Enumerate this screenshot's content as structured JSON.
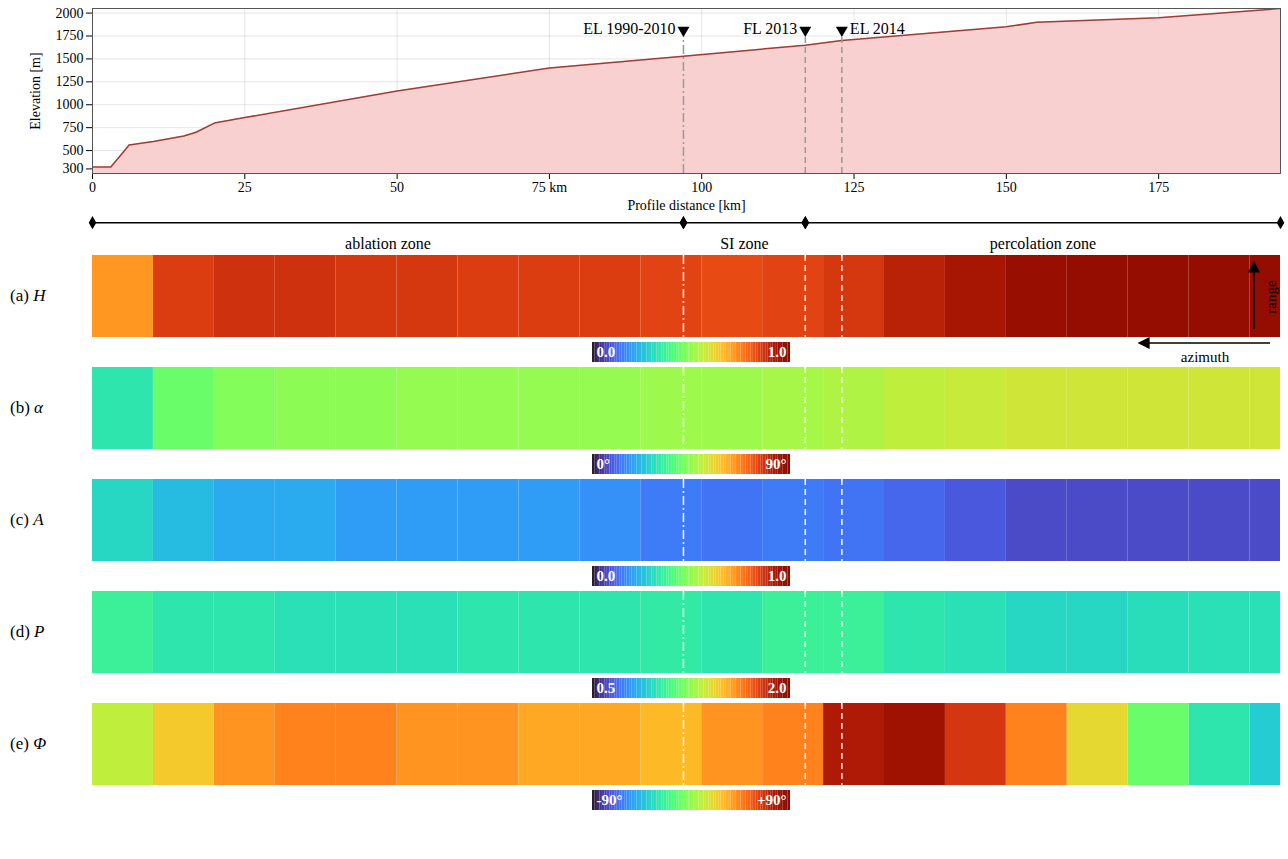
{
  "chart_data": [
    {
      "type": "area",
      "xlabel": "Profile distance [km]",
      "ylabel": "Elevation [m]",
      "x": [
        0,
        3,
        5,
        6,
        10,
        15,
        17,
        20,
        25,
        50,
        75,
        97,
        117,
        123,
        150,
        155,
        175,
        195
      ],
      "values": [
        320,
        320,
        480,
        560,
        600,
        660,
        700,
        800,
        860,
        1150,
        1400,
        1530,
        1650,
        1700,
        1850,
        1900,
        1950,
        2050
      ],
      "color": "#9e3d38",
      "xlim": [
        0,
        195
      ],
      "ylim": [
        250,
        2050
      ],
      "xticks": [
        0,
        25,
        50,
        {
          "value": 75,
          "label": "75 km"
        },
        100,
        125,
        150,
        175
      ],
      "yticks": [
        300,
        500,
        750,
        1000,
        1250,
        1500,
        1750,
        2000
      ],
      "grid": true,
      "annotations": [
        {
          "text": "EL 1990-2010",
          "x": 97,
          "marker": "triangle-down",
          "line_style": "dashdot"
        },
        {
          "text": "FL 2013",
          "x": 117,
          "marker": "triangle-down",
          "line_style": "dashed"
        },
        {
          "text": "EL 2014",
          "x": 123,
          "marker": "triangle-down",
          "line_style": "dashed"
        }
      ],
      "zones": [
        {
          "label": "ablation zone",
          "x": [
            0,
            97
          ]
        },
        {
          "label": "SI zone",
          "x": [
            97,
            117
          ]
        },
        {
          "label": "percolation zone",
          "x": [
            117,
            195
          ]
        }
      ]
    },
    {
      "type": "heatmap",
      "panel": "(a)",
      "label": "H",
      "bins": [
        0,
        10,
        20,
        30,
        40,
        50,
        60,
        70,
        80,
        90,
        100,
        110,
        120,
        130,
        140,
        150,
        160,
        170,
        180,
        190,
        195
      ],
      "values": [
        0.72,
        0.85,
        0.87,
        0.87,
        0.86,
        0.86,
        0.85,
        0.85,
        0.85,
        0.84,
        0.83,
        0.84,
        0.86,
        0.9,
        0.93,
        0.96,
        0.97,
        0.97,
        0.97,
        0.97
      ],
      "color": "turbo",
      "colorbar": {
        "range": [
          0,
          1
        ],
        "ticks": [
          {
            "value": 0,
            "label": "0.0"
          },
          {
            "value": 1,
            "label": "1.0"
          }
        ]
      },
      "annotations": [
        {
          "text": "range"
        },
        {
          "text": "azimuth"
        }
      ]
    },
    {
      "type": "heatmap",
      "panel": "(b)",
      "label": "α",
      "bins": [
        0,
        10,
        20,
        30,
        40,
        50,
        60,
        70,
        80,
        90,
        100,
        110,
        120,
        130,
        140,
        150,
        160,
        170,
        180,
        190,
        195
      ],
      "values": [
        30,
        40,
        43,
        44,
        44,
        45,
        45,
        45,
        45,
        46,
        46,
        47,
        48,
        50,
        51,
        52,
        52,
        52,
        52,
        52
      ],
      "color": "turbo",
      "colorbar": {
        "range": [
          0,
          90
        ],
        "ticks": [
          {
            "value": 0,
            "label": "0°"
          },
          {
            "value": 90,
            "label": "90°"
          }
        ]
      }
    },
    {
      "type": "heatmap",
      "panel": "(c)",
      "label": "A",
      "bins": [
        0,
        10,
        20,
        30,
        40,
        50,
        60,
        70,
        80,
        90,
        100,
        110,
        120,
        130,
        140,
        150,
        160,
        170,
        180,
        190,
        195
      ],
      "values": [
        0.3,
        0.25,
        0.22,
        0.22,
        0.2,
        0.2,
        0.2,
        0.2,
        0.18,
        0.15,
        0.14,
        0.15,
        0.14,
        0.12,
        0.1,
        0.08,
        0.08,
        0.08,
        0.08,
        0.08
      ],
      "color": "turbo",
      "colorbar": {
        "range": [
          0,
          1
        ],
        "ticks": [
          {
            "value": 0,
            "label": "0.0"
          },
          {
            "value": 1,
            "label": "1.0"
          }
        ]
      }
    },
    {
      "type": "heatmap",
      "panel": "(d)",
      "label": "P",
      "bins": [
        0,
        10,
        20,
        30,
        40,
        50,
        60,
        70,
        80,
        90,
        100,
        110,
        120,
        130,
        140,
        150,
        160,
        170,
        180,
        190,
        195
      ],
      "values": [
        1.05,
        1.0,
        1.0,
        0.98,
        0.98,
        0.98,
        1.0,
        1.0,
        1.0,
        1.02,
        1.0,
        1.05,
        1.05,
        1.0,
        0.98,
        0.95,
        0.95,
        0.97,
        0.98,
        0.98
      ],
      "color": "turbo",
      "colorbar": {
        "range": [
          0.5,
          2
        ],
        "ticks": [
          {
            "value": 0.5,
            "label": "0.5"
          },
          {
            "value": 2,
            "label": "2.0"
          }
        ]
      }
    },
    {
      "type": "heatmap",
      "panel": "(e)",
      "label": "Φ",
      "bins": [
        0,
        10,
        20,
        30,
        40,
        50,
        60,
        70,
        80,
        90,
        100,
        110,
        120,
        130,
        140,
        150,
        160,
        170,
        180,
        190,
        195
      ],
      "values": [
        10,
        25,
        40,
        45,
        45,
        40,
        40,
        35,
        35,
        30,
        40,
        45,
        75,
        80,
        65,
        45,
        20,
        -10,
        -30,
        -40
      ],
      "color": "turbo",
      "colorbar": {
        "range": [
          -90,
          90
        ],
        "ticks": [
          {
            "value": -90,
            "label": "-90°"
          },
          {
            "value": 90,
            "label": "+90°"
          }
        ]
      }
    }
  ]
}
